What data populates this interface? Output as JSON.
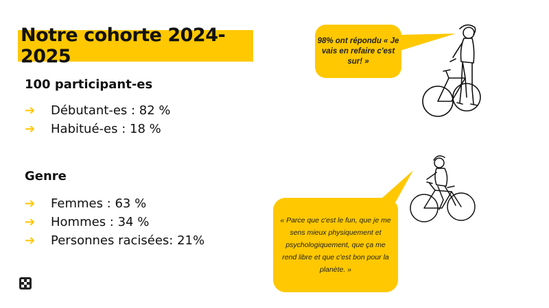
{
  "title": "Notre cohorte 2024-2025",
  "participants": {
    "heading": "100 participant-es",
    "items": [
      {
        "label": "Débutant-es : 82 %"
      },
      {
        "label": "Habitué-es : 18 %"
      }
    ]
  },
  "genre": {
    "heading": "Genre",
    "items": [
      {
        "label": "Femmes : 63 %"
      },
      {
        "label": "Hommes : 34 %"
      },
      {
        "label": "Personnes racisées: 21%"
      }
    ]
  },
  "arrow_glyph": "➔",
  "quote_top": "98% ont répondu « Je vais en refaire c'est sur! »",
  "quote_bottom": "« Parce que c'est le fun, que je me sens mieux physiquement et psychologiquement, que ça me rend libre et que c'est bon pour la planète. »",
  "colors": {
    "accent": "#ffc800",
    "text": "#111111"
  },
  "icons": [
    "arrow-right-icon",
    "cyclist-standing-illustration",
    "cyclist-riding-illustration",
    "logo-icon"
  ]
}
